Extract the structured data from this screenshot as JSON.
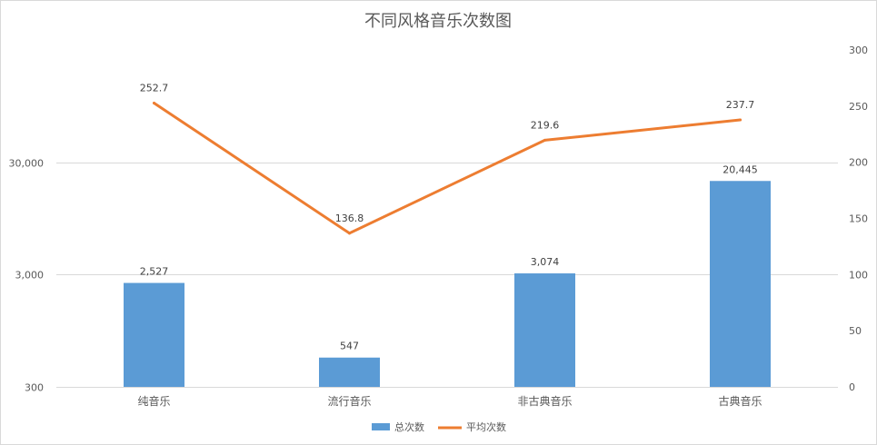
{
  "chart_data": {
    "type": "bar",
    "title": "不同风格音乐次数图",
    "categories": [
      "纯音乐",
      "流行音乐",
      "非古典音乐",
      "古典音乐"
    ],
    "series": [
      {
        "name": "总次数",
        "type": "bar",
        "axis": "left",
        "values": [
          2527,
          547,
          3074,
          20445
        ],
        "labels": [
          "2,527",
          "547",
          "3,074",
          "20,445"
        ],
        "color": "#5B9BD5"
      },
      {
        "name": "平均次数",
        "type": "line",
        "axis": "right",
        "values": [
          252.7,
          136.8,
          219.6,
          237.7
        ],
        "labels": [
          "252.7",
          "136.8",
          "219.6",
          "237.7"
        ],
        "color": "#ED7D31"
      }
    ],
    "y_left": {
      "scale": "log",
      "ylim": [
        300,
        30000
      ],
      "ticks": [
        300,
        3000,
        30000
      ],
      "tick_labels": [
        "300",
        "3,000",
        "30,000"
      ]
    },
    "y_right": {
      "scale": "linear",
      "ylim": [
        0,
        300
      ],
      "ticks": [
        0,
        50,
        100,
        150,
        200,
        250,
        300
      ],
      "tick_labels": [
        "0",
        "50",
        "100",
        "150",
        "200",
        "250",
        "300"
      ]
    },
    "grid": true,
    "legend_position": "bottom"
  }
}
